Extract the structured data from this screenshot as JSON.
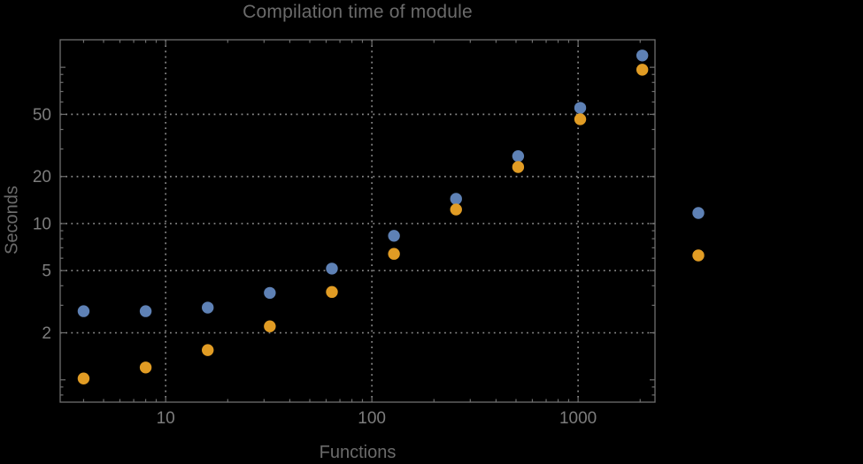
{
  "title": "Compilation time of module",
  "axes": {
    "xlabel": "Functions",
    "ylabel": "Seconds"
  },
  "colors": {
    "background": "#000000",
    "title_text": "#6b6b6b",
    "tick_text": "#7d7d7d",
    "frame": "#6f6f6f",
    "grid": "#888888",
    "series_blue": "#5e81b5",
    "series_orange": "#e19c24"
  },
  "chart_data": {
    "type": "scatter",
    "title": "Compilation time of module",
    "xlabel": "Functions",
    "ylabel": "Seconds",
    "xscale": "log",
    "yscale": "log",
    "grid": "dotted, at labeled ticks only",
    "x": [
      4,
      8,
      16,
      32,
      64,
      128,
      256,
      512,
      1024,
      2048
    ],
    "series": [
      {
        "name": "series-1",
        "color": "#5e81b5",
        "values": [
          2.75,
          2.75,
          2.9,
          3.6,
          5.15,
          8.35,
          14.4,
          27,
          55,
          119
        ]
      },
      {
        "name": "series-2",
        "color": "#e19c24",
        "values": [
          1.02,
          1.2,
          1.55,
          2.2,
          3.65,
          6.4,
          12.3,
          23,
          46.5,
          96.5
        ]
      }
    ],
    "x_axis": {
      "labeled_ticks": [
        10,
        100,
        1000
      ],
      "lim": [
        3.08,
        2360
      ]
    },
    "y_axis": {
      "labeled_ticks": [
        2,
        5,
        10,
        20,
        50
      ],
      "lim": [
        0.72,
        150
      ]
    },
    "legend": {
      "position": "outside-right",
      "labels_visible": false,
      "markers": [
        {
          "series": "series-1",
          "color": "#5e81b5"
        },
        {
          "series": "series-2",
          "color": "#e19c24"
        }
      ]
    }
  }
}
